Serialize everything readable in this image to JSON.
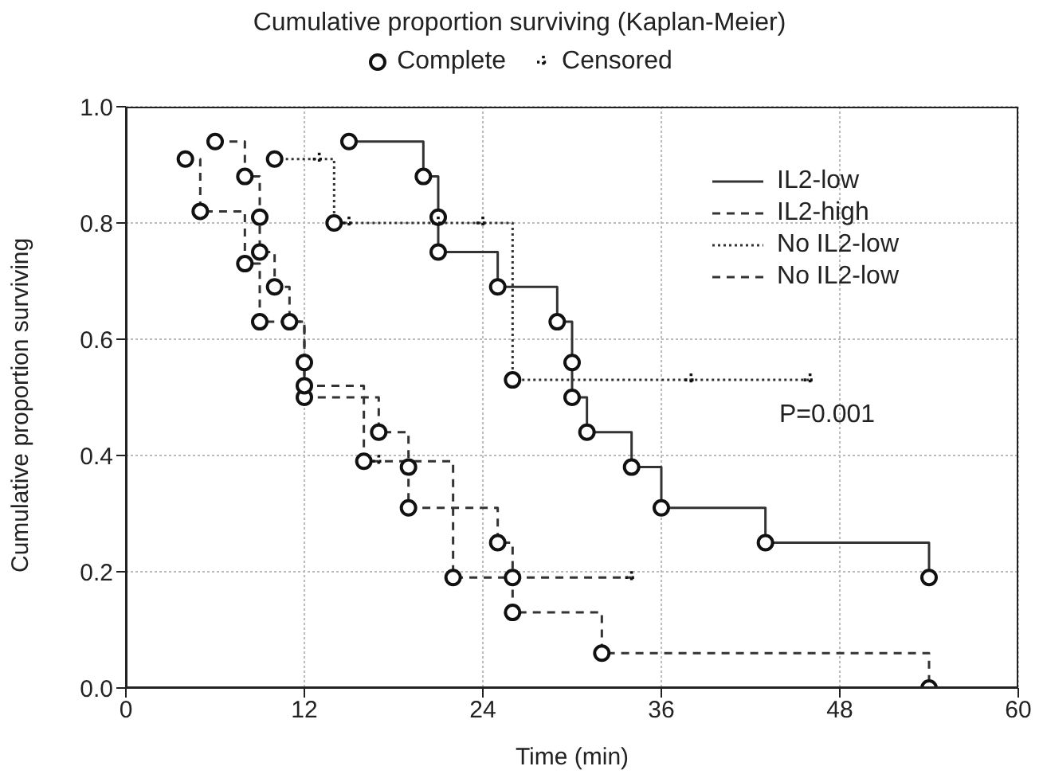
{
  "chart_data": {
    "type": "step",
    "title": "Cumulative proportion surviving (Kaplan-Meier)",
    "xlabel": "Time (min)",
    "ylabel": "Cumulative proportion surviving",
    "xlim": [
      0,
      60
    ],
    "xticks": [
      0,
      12,
      24,
      36,
      48,
      60
    ],
    "ylim": [
      0,
      1
    ],
    "yticks": [
      {
        "value": 0,
        "label": "0.0"
      },
      {
        "value": 0.2,
        "label": "0.2"
      },
      {
        "value": 0.4,
        "label": "0.4"
      },
      {
        "value": 0.6,
        "label": "0.6"
      },
      {
        "value": 0.8,
        "label": "0.8"
      },
      {
        "value": 1,
        "label": "1.0"
      }
    ],
    "grid": true,
    "legend": "top right",
    "marker": "none",
    "annotations": [
      "P=0.001"
    ],
    "series": [
      {
        "name": "IL2-low",
        "color": "#333333",
        "line_style": "solid",
        "x": [
          15,
          20,
          21,
          21,
          25,
          29,
          30,
          30,
          31,
          34,
          36,
          43,
          54
        ],
        "values": [
          0.94,
          0.88,
          0.81,
          0.75,
          0.69,
          0.63,
          0.56,
          0.5,
          0.44,
          0.38,
          0.31,
          0.25,
          0.19
        ]
      },
      {
        "name": "IL2-high",
        "color": "#333333",
        "line_style": "dashed",
        "x": [
          6,
          8,
          9,
          9,
          10,
          11,
          12,
          12,
          17,
          19,
          19,
          25,
          26,
          26,
          32,
          54
        ],
        "values": [
          0.94,
          0.88,
          0.81,
          0.75,
          0.69,
          0.63,
          0.56,
          0.5,
          0.44,
          0.38,
          0.31,
          0.25,
          0.19,
          0.13,
          0.06,
          0
        ]
      },
      {
        "name": "No IL2-low",
        "color": "#333333",
        "line_style": "dotted",
        "x": [
          10,
          13,
          14,
          15,
          21,
          24,
          26,
          38,
          46
        ],
        "values": [
          0.91,
          0.91,
          0.8,
          0.8,
          0.8,
          0.8,
          0.53,
          0.53,
          0.53
        ]
      },
      {
        "name": "No IL2-low",
        "color": "#333333",
        "line_style": "dashed",
        "x": [
          4,
          5,
          8,
          9,
          12,
          16,
          17,
          22,
          34
        ],
        "values": [
          0.91,
          0.82,
          0.73,
          0.63,
          0.52,
          0.39,
          0.39,
          0.19,
          0.19
        ]
      },
      {
        "name": "Complete",
        "type": "scatter",
        "marker": "circle",
        "color": "#111111",
        "x": [
          15,
          20,
          21,
          21,
          25,
          29,
          30,
          30,
          31,
          34,
          36,
          43,
          54,
          6,
          8,
          9,
          9,
          10,
          11,
          12,
          12,
          17,
          19,
          19,
          25,
          26,
          26,
          32,
          54,
          10,
          14,
          26,
          4,
          5,
          8,
          9,
          12,
          16,
          22
        ],
        "values": [
          0.94,
          0.88,
          0.81,
          0.75,
          0.69,
          0.63,
          0.56,
          0.5,
          0.44,
          0.38,
          0.31,
          0.25,
          0.19,
          0.94,
          0.88,
          0.81,
          0.75,
          0.69,
          0.63,
          0.56,
          0.5,
          0.44,
          0.38,
          0.31,
          0.25,
          0.19,
          0.13,
          0.06,
          0,
          0.91,
          0.8,
          0.53,
          0.91,
          0.82,
          0.73,
          0.63,
          0.52,
          0.39,
          0.19
        ]
      },
      {
        "name": "Censored",
        "type": "scatter",
        "marker": "cross",
        "color": "#111111",
        "x": [
          13,
          15,
          21,
          24,
          38,
          46,
          17,
          34
        ],
        "values": [
          0.91,
          0.8,
          0.8,
          0.8,
          0.53,
          0.53,
          0.39,
          0.19
        ]
      }
    ]
  }
}
